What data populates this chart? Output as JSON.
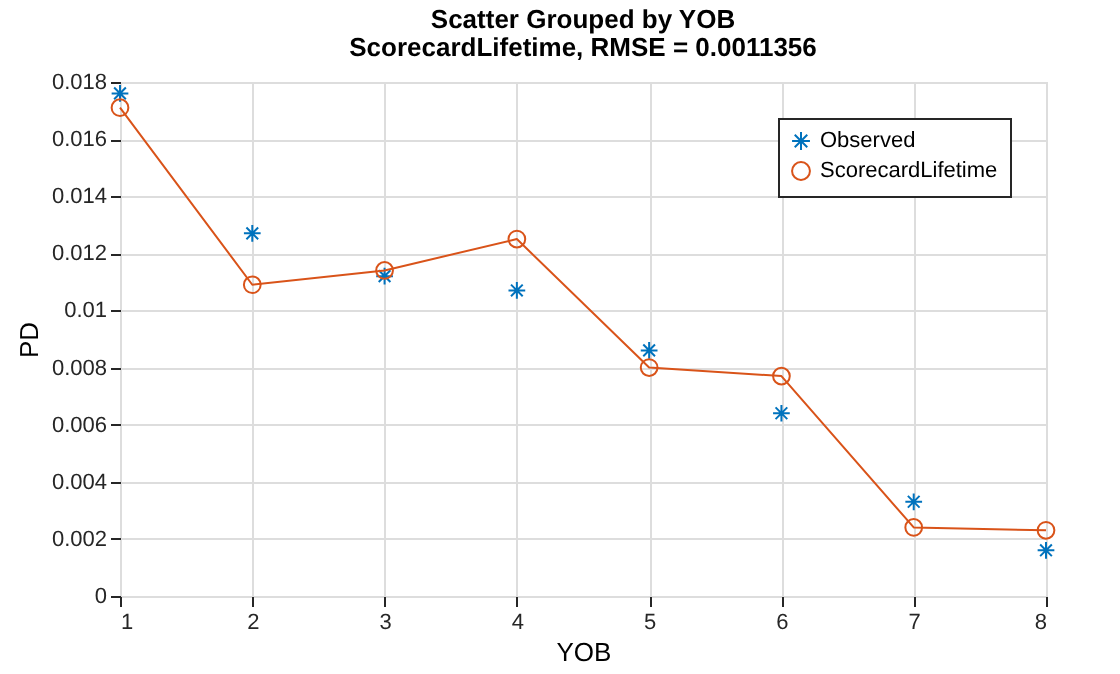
{
  "chart_data": {
    "type": "scatter",
    "title": "Scatter Grouped by YOB",
    "subtitle": "ScorecardLifetime, RMSE = 0.0011356",
    "xlabel": "YOB",
    "ylabel": "PD",
    "x": [
      1,
      2,
      3,
      4,
      5,
      6,
      7,
      8
    ],
    "series": [
      {
        "name": "Observed",
        "type": "scatter",
        "marker": "cross",
        "color": "#0072bd",
        "values": [
          0.0176,
          0.0127,
          0.0112,
          0.0107,
          0.0086,
          0.0064,
          0.0033,
          0.0016
        ]
      },
      {
        "name": "ScorecardLifetime",
        "type": "line",
        "marker": "circle",
        "color": "#d95319",
        "values": [
          0.0171,
          0.0109,
          0.0114,
          0.0125,
          0.008,
          0.0077,
          0.0024,
          0.0023
        ]
      }
    ],
    "xlim": [
      1,
      8
    ],
    "xticks": [
      1,
      2,
      3,
      4,
      5,
      6,
      7,
      8
    ],
    "ylim": [
      0,
      0.018
    ],
    "yticks": [
      0,
      0.002,
      0.004,
      0.006,
      0.008,
      0.01,
      0.012,
      0.014,
      0.016,
      0.018
    ],
    "grid": true,
    "legend": "top right"
  }
}
